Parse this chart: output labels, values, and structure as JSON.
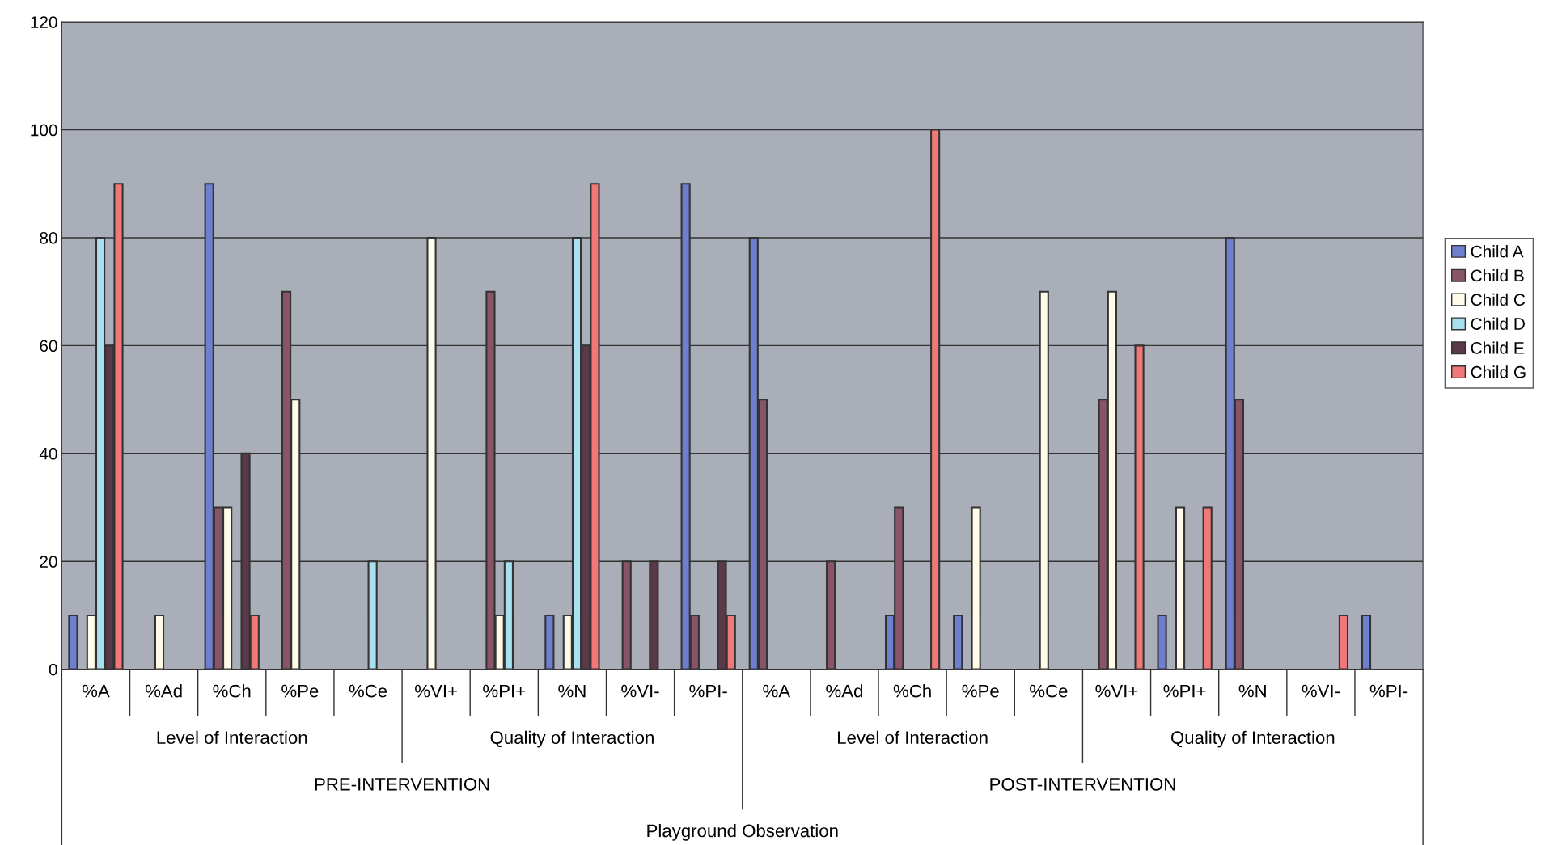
{
  "chart_data": {
    "type": "bar",
    "categories": [
      "%A",
      "%Ad",
      "%Ch",
      "%Pe",
      "%Ce",
      "%VI+",
      "%PI+",
      "%N",
      "%VI-",
      "%PI-",
      "%A",
      "%Ad",
      "%Ch",
      "%Pe",
      "%Ce",
      "%VI+",
      "%PI+",
      "%N",
      "%VI-",
      "%PI-"
    ],
    "series": [
      {
        "name": "Child A",
        "color": "#6f7fd0",
        "values": [
          10,
          0,
          90,
          0,
          0,
          0,
          0,
          10,
          0,
          90,
          80,
          0,
          10,
          10,
          0,
          0,
          10,
          80,
          0,
          10
        ]
      },
      {
        "name": "Child B",
        "color": "#8a5468",
        "values": [
          0,
          0,
          30,
          70,
          0,
          0,
          70,
          0,
          20,
          10,
          50,
          20,
          30,
          0,
          0,
          50,
          0,
          50,
          0,
          0
        ]
      },
      {
        "name": "Child C",
        "color": "#fffbe8",
        "values": [
          10,
          10,
          30,
          50,
          0,
          80,
          10,
          10,
          0,
          0,
          0,
          0,
          0,
          30,
          70,
          70,
          30,
          0,
          0,
          0
        ]
      },
      {
        "name": "Child D",
        "color": "#a8e0f0",
        "values": [
          80,
          0,
          0,
          0,
          20,
          0,
          20,
          80,
          0,
          0,
          0,
          0,
          0,
          0,
          0,
          0,
          0,
          0,
          0,
          0
        ]
      },
      {
        "name": "Child E",
        "color": "#5a3a48",
        "values": [
          60,
          0,
          40,
          0,
          0,
          0,
          0,
          60,
          20,
          20,
          0,
          0,
          0,
          0,
          0,
          0,
          0,
          0,
          0,
          0
        ]
      },
      {
        "name": "Child G",
        "color": "#f07878",
        "values": [
          90,
          0,
          10,
          0,
          0,
          0,
          0,
          90,
          0,
          10,
          0,
          0,
          100,
          0,
          0,
          60,
          30,
          0,
          10,
          0
        ]
      }
    ],
    "ylim": [
      0,
      120
    ],
    "yticks": [
      0,
      20,
      40,
      60,
      80,
      100,
      120
    ],
    "grid": "y",
    "legend": "right",
    "annotations": [
      "Level of Interaction",
      "Quality of Interaction",
      "Level of Interaction",
      "Quality of Interaction",
      "PRE-INTERVENTION",
      "POST-INTERVENTION",
      "Playground Observation"
    ]
  }
}
